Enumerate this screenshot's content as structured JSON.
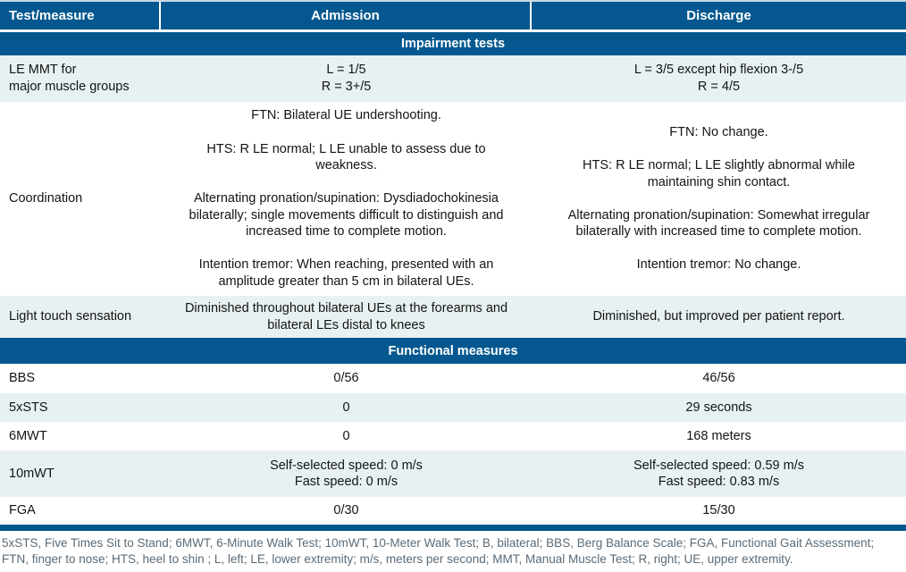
{
  "header": {
    "test_measure": "Test/measure",
    "admission": "Admission",
    "discharge": "Discharge"
  },
  "colors": {
    "header_blue": "#04588f",
    "row_tint": "#e7f1f1",
    "footnote_gray": "#5b6b77"
  },
  "sections": [
    {
      "title": "Impairment tests",
      "rows": [
        {
          "label": "LE MMT for\nmajor muscle groups",
          "admission": "L = 1/5\nR = 3+/5",
          "discharge": "L = 3/5 except hip flexion 3-/5\nR = 4/5"
        },
        {
          "label": "Coordination",
          "admission": "FTN: Bilateral UE undershooting.\n\nHTS: R LE normal; L LE unable to assess due to weakness.\n\nAlternating pronation/supination: Dysdiadochokinesia bilaterally; single movements difficult to distinguish and increased time to complete motion.\n\nIntention tremor: When reaching, presented with an amplitude greater than 5 cm in bilateral UEs.",
          "discharge": "FTN: No change.\n\nHTS: R LE normal; L LE slightly abnormal while maintaining shin contact.\n\nAlternating pronation/supination: Somewhat irregular bilaterally with increased time to complete motion.\n\nIntention tremor: No change."
        },
        {
          "label": "Light touch sensation",
          "admission": "Diminished throughout bilateral UEs at the forearms and bilateral LEs distal to knees",
          "discharge": "Diminished, but improved per patient report."
        }
      ]
    },
    {
      "title": "Functional measures",
      "rows": [
        {
          "label": "BBS",
          "admission": "0/56",
          "discharge": "46/56"
        },
        {
          "label": "5xSTS",
          "admission": "0",
          "discharge": "29 seconds"
        },
        {
          "label": "6MWT",
          "admission": "0",
          "discharge": "168 meters"
        },
        {
          "label": "10mWT",
          "admission": "Self-selected speed: 0 m/s\nFast speed: 0 m/s",
          "discharge": "Self-selected speed: 0.59 m/s\nFast speed: 0.83 m/s"
        },
        {
          "label": "FGA",
          "admission": "0/30",
          "discharge": "15/30"
        }
      ]
    }
  ],
  "footnote": "5xSTS, Five Times Sit to Stand; 6MWT, 6-Minute Walk Test; 10mWT, 10-Meter Walk Test; B, bilateral; BBS, Berg Balance Scale; FGA, Functional Gait Assessment; FTN, finger to nose; HTS, heel to shin ; L, left; LE, lower extremity; m/s, meters per second; MMT, Manual Muscle Test; R, right; UE, upper extremity."
}
